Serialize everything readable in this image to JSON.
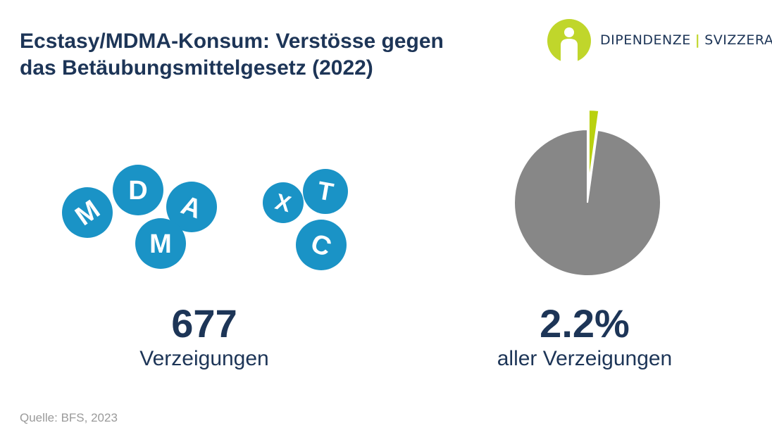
{
  "header": {
    "title_line1": "Ecstasy/MDMA-Konsum: Verstösse gegen",
    "title_line2": "das Betäubungsmittelgesetz (2022)"
  },
  "logo": {
    "name_left": "DIPENDENZE",
    "separator": "|",
    "name_right": "SVIZZERA"
  },
  "pills": {
    "letters": [
      "M",
      "D",
      "A",
      "M",
      "X",
      "T",
      "C"
    ],
    "color": "#1a93c6"
  },
  "stats": {
    "count_value": "677",
    "count_label": "Verzeigungen",
    "share_value": "2.2%",
    "share_label": "aller Verzeigungen"
  },
  "chart_data": {
    "type": "pie",
    "slices": [
      {
        "value": 2.2,
        "color": "#b9d10f"
      },
      {
        "value": 97.8,
        "color": "#878787"
      }
    ],
    "highlighted_slice_exploded": true
  },
  "footer": {
    "source": "Quelle: BFS, 2023"
  },
  "colors": {
    "title": "#1d3557",
    "accent_green": "#b9d10f",
    "pill_blue": "#1a93c6",
    "pie_gray": "#878787"
  }
}
